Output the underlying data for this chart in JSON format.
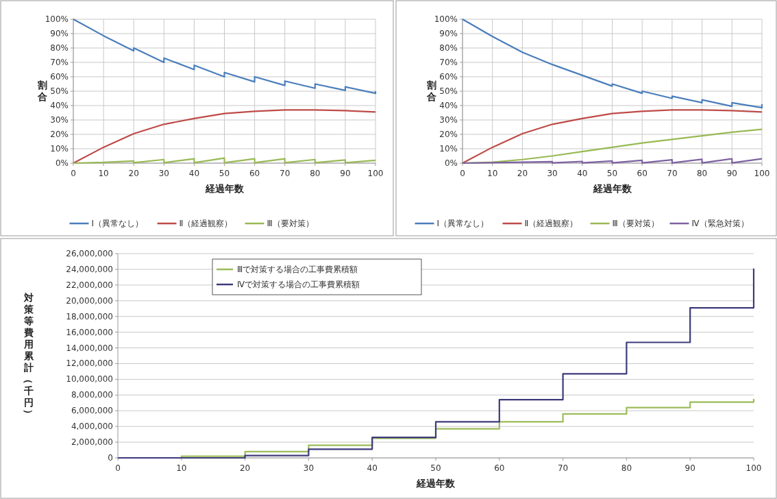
{
  "chart_data": [
    {
      "type": "line",
      "xlabel": "経過年数",
      "ylabel": "割合",
      "xlim": [
        0,
        100
      ],
      "xticks": [
        0,
        10,
        20,
        30,
        40,
        50,
        60,
        70,
        80,
        90,
        100
      ],
      "ylim": [
        0,
        100
      ],
      "yticks": [
        {
          "value": 0,
          "label": "0%"
        },
        {
          "value": 10,
          "label": "10%"
        },
        {
          "value": 20,
          "label": "20%"
        },
        {
          "value": 30,
          "label": "30%"
        },
        {
          "value": 40,
          "label": "40%"
        },
        {
          "value": 50,
          "label": "50%"
        },
        {
          "value": 60,
          "label": "60%"
        },
        {
          "value": 70,
          "label": "70%"
        },
        {
          "value": 80,
          "label": "80%"
        },
        {
          "value": 90,
          "label": "90%"
        },
        {
          "value": 100,
          "label": "100%"
        }
      ],
      "grid": true,
      "legend": "bottom",
      "marker": "none",
      "line_style": "solid",
      "series": [
        {
          "name": "Ⅰ（異常なし）",
          "color": "#4a7ebb",
          "x": [
            0,
            10,
            20,
            20,
            30,
            30,
            40,
            40,
            50,
            50,
            60,
            60,
            70,
            70,
            80,
            80,
            90,
            90,
            100,
            100
          ],
          "values": [
            100,
            88.5,
            78,
            80,
            70,
            73,
            65,
            68,
            60,
            63,
            56.5,
            60,
            54,
            57,
            52,
            55,
            50.5,
            53,
            48.5,
            50
          ]
        },
        {
          "name": "Ⅱ（経過観察）",
          "color": "#be4b48",
          "x": [
            0,
            10,
            20,
            30,
            40,
            50,
            60,
            70,
            80,
            90,
            100
          ],
          "values": [
            0,
            11,
            20.5,
            27,
            31,
            34.5,
            36,
            37,
            37,
            36.5,
            35.5
          ]
        },
        {
          "name": "Ⅲ（要対策）",
          "color": "#98b954",
          "x": [
            0,
            10,
            20,
            20,
            30,
            30,
            40,
            40,
            50,
            50,
            60,
            60,
            70,
            70,
            80,
            80,
            90,
            90,
            100
          ],
          "values": [
            0,
            0.5,
            1.5,
            0.3,
            2.5,
            0.3,
            3,
            0.3,
            3.5,
            0.3,
            3,
            0.3,
            3,
            0.3,
            2.5,
            0.3,
            2.2,
            0.3,
            2
          ]
        }
      ]
    },
    {
      "type": "line",
      "xlabel": "経過年数",
      "ylabel": "割合",
      "xlim": [
        0,
        100
      ],
      "xticks": [
        0,
        10,
        20,
        30,
        40,
        50,
        60,
        70,
        80,
        90,
        100
      ],
      "ylim": [
        0,
        100
      ],
      "yticks": [
        {
          "value": 0,
          "label": "0%"
        },
        {
          "value": 10,
          "label": "10%"
        },
        {
          "value": 20,
          "label": "20%"
        },
        {
          "value": 30,
          "label": "30%"
        },
        {
          "value": 40,
          "label": "40%"
        },
        {
          "value": 50,
          "label": "50%"
        },
        {
          "value": 60,
          "label": "60%"
        },
        {
          "value": 70,
          "label": "70%"
        },
        {
          "value": 80,
          "label": "80%"
        },
        {
          "value": 90,
          "label": "90%"
        },
        {
          "value": 100,
          "label": "100%"
        }
      ],
      "grid": true,
      "legend": "bottom",
      "marker": "none",
      "line_style": "solid",
      "series": [
        {
          "name": "Ⅰ（異常なし）",
          "color": "#4a7ebb",
          "x": [
            0,
            10,
            20,
            30,
            40,
            50,
            50,
            60,
            60,
            70,
            70,
            80,
            80,
            90,
            90,
            100,
            100
          ],
          "values": [
            100,
            88,
            77,
            68.5,
            61,
            53.5,
            55,
            48.5,
            50,
            45,
            46.5,
            42,
            44,
            39.5,
            42,
            38.5,
            41
          ]
        },
        {
          "name": "Ⅱ（経過観察）",
          "color": "#be4b48",
          "x": [
            0,
            10,
            20,
            30,
            40,
            50,
            60,
            70,
            80,
            90,
            100
          ],
          "values": [
            0,
            11,
            20.5,
            27,
            31,
            34.5,
            36,
            37,
            37,
            36.5,
            35.5
          ]
        },
        {
          "name": "Ⅲ（要対策）",
          "color": "#98b954",
          "x": [
            0,
            10,
            20,
            30,
            40,
            50,
            60,
            70,
            80,
            90,
            100
          ],
          "values": [
            0,
            0.7,
            2.5,
            5,
            8,
            11,
            14,
            16.5,
            19,
            21.5,
            23.5
          ]
        },
        {
          "name": "Ⅳ（緊急対策）",
          "color": "#7d60a0",
          "x": [
            0,
            30,
            30,
            40,
            40,
            50,
            50,
            60,
            60,
            70,
            70,
            80,
            80,
            90,
            90,
            100
          ],
          "values": [
            0,
            1,
            0.2,
            1.2,
            0.2,
            1.5,
            0.2,
            2,
            0.2,
            2.3,
            0.2,
            2.7,
            0.2,
            3,
            0.2,
            3
          ]
        }
      ]
    },
    {
      "type": "step",
      "xlabel": "経過年数",
      "ylabel": "対策等費用累計（千円）",
      "xlim": [
        0,
        100
      ],
      "xticks": [
        0,
        10,
        20,
        30,
        40,
        50,
        60,
        70,
        80,
        90,
        100
      ],
      "ylim": [
        0,
        26000000
      ],
      "yticks": [
        {
          "value": 0,
          "label": "0"
        },
        {
          "value": 2000000,
          "label": "2,000,000"
        },
        {
          "value": 4000000,
          "label": "4,000,000"
        },
        {
          "value": 6000000,
          "label": "6,000,000"
        },
        {
          "value": 8000000,
          "label": "8,000,000"
        },
        {
          "value": 10000000,
          "label": "10,000,000"
        },
        {
          "value": 12000000,
          "label": "12,000,000"
        },
        {
          "value": 14000000,
          "label": "14,000,000"
        },
        {
          "value": 16000000,
          "label": "16,000,000"
        },
        {
          "value": 18000000,
          "label": "18,000,000"
        },
        {
          "value": 20000000,
          "label": "20,000,000"
        },
        {
          "value": 22000000,
          "label": "22,000,000"
        },
        {
          "value": 24000000,
          "label": "24,000,000"
        },
        {
          "value": 26000000,
          "label": "26,000,000"
        }
      ],
      "grid": "y",
      "legend": "top left",
      "marker": "none",
      "line_style": "solid",
      "series": [
        {
          "name": "Ⅲで対策する場合の工事費累積額",
          "color": "#9bbb59",
          "x": [
            0,
            10,
            20,
            30,
            40,
            50,
            60,
            70,
            80,
            90,
            100
          ],
          "values": [
            0,
            200000,
            800000,
            1600000,
            2500000,
            3700000,
            4600000,
            5600000,
            6400000,
            7100000,
            7500000
          ]
        },
        {
          "name": "Ⅳで対策する場合の工事費累積額",
          "color": "#3d3a7a",
          "x": [
            0,
            10,
            20,
            30,
            40,
            50,
            60,
            70,
            80,
            90,
            100
          ],
          "values": [
            0,
            0,
            300000,
            1100000,
            2600000,
            4600000,
            7400000,
            10700000,
            14700000,
            19100000,
            24100000
          ]
        }
      ]
    }
  ]
}
